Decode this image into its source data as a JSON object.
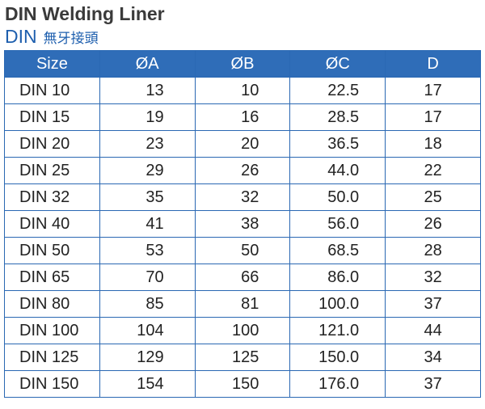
{
  "header": {
    "title": "DIN Welding Liner",
    "subtitle": "DIN",
    "subtitle_note": "無牙接頭"
  },
  "table": {
    "columns": [
      "Size",
      "ØA",
      "ØB",
      "ØC",
      "D"
    ],
    "rows": [
      [
        "DIN 10",
        "13",
        "10",
        "22.5",
        "17"
      ],
      [
        "DIN 15",
        "19",
        "16",
        "28.5",
        "17"
      ],
      [
        "DIN 20",
        "23",
        "20",
        "36.5",
        "18"
      ],
      [
        "DIN 25",
        "29",
        "26",
        "44.0",
        "22"
      ],
      [
        "DIN 32",
        "35",
        "32",
        "50.0",
        "25"
      ],
      [
        "DIN 40",
        "41",
        "38",
        "56.0",
        "26"
      ],
      [
        "DIN 50",
        "53",
        "50",
        "68.5",
        "28"
      ],
      [
        "DIN 65",
        "70",
        "66",
        "86.0",
        "32"
      ],
      [
        "DIN 80",
        "85",
        "81",
        "100.0",
        "37"
      ],
      [
        "DIN 100",
        "104",
        "100",
        "121.0",
        "44"
      ],
      [
        "DIN 125",
        "129",
        "125",
        "150.0",
        "34"
      ],
      [
        "DIN 150",
        "154",
        "150",
        "176.0",
        "37"
      ]
    ]
  }
}
